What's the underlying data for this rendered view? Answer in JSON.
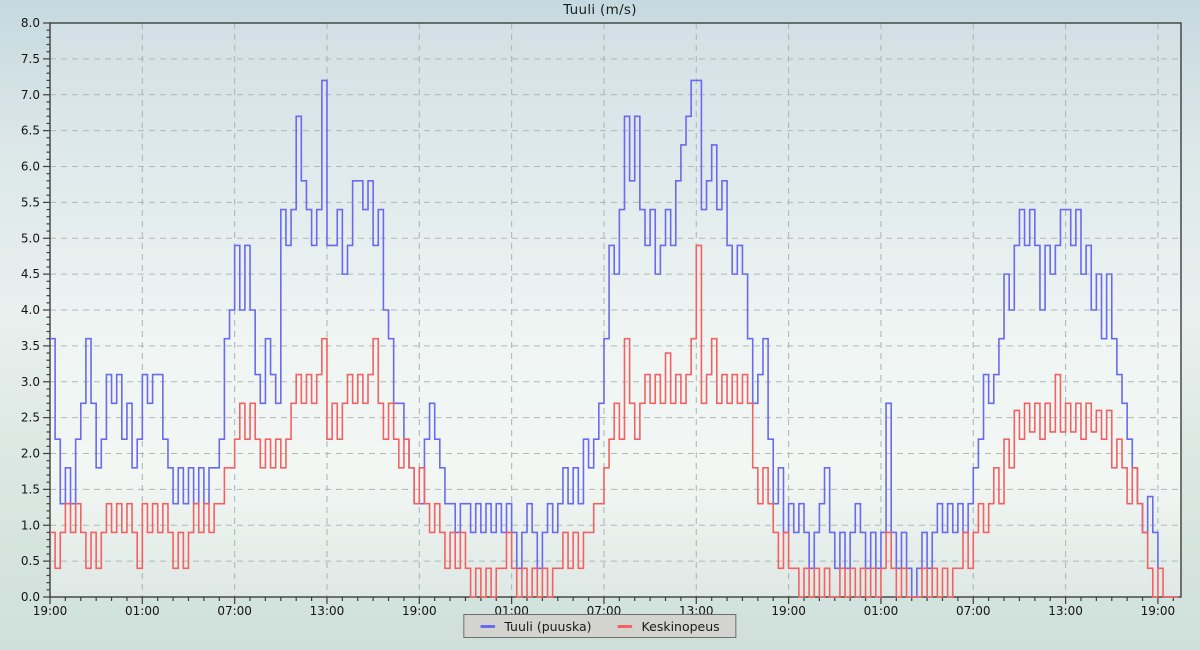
{
  "page": {
    "title": "Tuuli (m/s)"
  },
  "legend": {
    "items": [
      {
        "label": "Tuuli (puuska)",
        "color": "#6a6aec"
      },
      {
        "label": "Keskinopeus",
        "color": "#f36262"
      }
    ]
  },
  "chart_data": {
    "type": "line",
    "step": "after",
    "title": "Tuuli (m/s)",
    "xlabel": "",
    "ylabel": "",
    "ylim": [
      0,
      8
    ],
    "y_major": 0.5,
    "y_minor": 0.1,
    "y_tick_labels": [
      "8.0",
      "7.5",
      "7.0",
      "6.5",
      "6.0",
      "5.5",
      "5.0",
      "4.5",
      "4.0",
      "3.5",
      "3.0",
      "2.5",
      "2.0",
      "1.5",
      "1.0",
      "0.5",
      "0.0"
    ],
    "x_start_label": "19:00",
    "x_step_hours": 0.3333333,
    "x_total_hours": 73.5,
    "x_major_every_hours": 6,
    "x_minor_every_hours": 1,
    "x_tick_labels": [
      "19:00",
      "01:00",
      "07:00",
      "13:00",
      "19:00",
      "01:00",
      "07:00",
      "13:00",
      "19:00",
      "01:00",
      "07:00",
      "13:00",
      "19:00"
    ],
    "grid": true,
    "legend_position": "bottom",
    "colors": {
      "grid": "#b0b8b8",
      "axis": "#3d3d3d",
      "tick_text": "#141414",
      "plot_bg_top": "#d2e0e5",
      "plot_bg_mid": "#eff5f3",
      "plot_bg_low": "#f2f7f4",
      "plot_bg_bottom": "#dee8e4"
    },
    "series": [
      {
        "name": "Tuuli (puuska)",
        "color": "#6a6aec",
        "values": [
          3.6,
          2.2,
          1.3,
          1.8,
          1.3,
          2.2,
          2.7,
          3.6,
          2.7,
          1.8,
          2.2,
          3.1,
          2.7,
          3.1,
          2.2,
          2.7,
          1.8,
          2.2,
          3.1,
          2.7,
          3.1,
          3.1,
          2.2,
          1.8,
          1.3,
          1.8,
          1.3,
          1.8,
          1.3,
          1.8,
          1.3,
          1.8,
          1.8,
          2.2,
          3.6,
          4.0,
          4.9,
          4.0,
          4.9,
          4.0,
          3.1,
          2.7,
          3.6,
          3.1,
          2.7,
          5.4,
          4.9,
          5.4,
          6.7,
          5.8,
          5.4,
          4.9,
          5.4,
          7.2,
          4.9,
          4.9,
          5.4,
          4.5,
          4.9,
          5.8,
          5.8,
          5.4,
          5.8,
          4.9,
          5.4,
          4.0,
          3.6,
          2.7,
          2.7,
          2.2,
          1.8,
          1.3,
          1.3,
          2.2,
          2.7,
          2.2,
          1.8,
          1.3,
          1.3,
          0.9,
          1.3,
          1.3,
          0.9,
          1.3,
          0.9,
          1.3,
          0.9,
          1.3,
          0.9,
          1.3,
          0.9,
          0.4,
          0.9,
          1.3,
          0.9,
          0.4,
          0.9,
          1.3,
          0.9,
          1.3,
          1.8,
          1.3,
          1.8,
          1.3,
          2.2,
          1.8,
          2.2,
          2.7,
          3.6,
          4.9,
          4.5,
          5.4,
          6.7,
          5.8,
          6.7,
          5.4,
          4.9,
          5.4,
          4.5,
          4.9,
          5.4,
          4.9,
          5.8,
          6.3,
          6.7,
          7.2,
          7.2,
          5.4,
          5.8,
          6.3,
          5.4,
          5.8,
          4.9,
          4.5,
          4.9,
          4.5,
          3.6,
          2.7,
          3.1,
          3.6,
          2.2,
          1.3,
          1.8,
          0.9,
          1.3,
          0.9,
          1.3,
          0.9,
          0.4,
          0.9,
          1.3,
          1.8,
          0.9,
          0.4,
          0.9,
          0.4,
          0.9,
          1.3,
          0.9,
          0.4,
          0.9,
          0.4,
          0.9,
          2.7,
          0.9,
          0.4,
          0.9,
          0.4,
          0.0,
          0.4,
          0.9,
          0.4,
          0.9,
          1.3,
          0.9,
          1.3,
          0.9,
          1.3,
          0.9,
          1.3,
          1.8,
          2.2,
          3.1,
          2.7,
          3.1,
          3.6,
          4.5,
          4.0,
          4.9,
          5.4,
          4.9,
          5.4,
          4.9,
          4.0,
          4.9,
          4.5,
          4.9,
          5.4,
          5.4,
          4.9,
          5.4,
          4.5,
          4.9,
          4.0,
          4.5,
          3.6,
          4.5,
          3.6,
          3.1,
          2.7,
          2.2,
          1.8,
          1.3,
          0.9,
          1.4,
          0.9,
          0.4
        ]
      },
      {
        "name": "Keskinopeus",
        "color": "#f36262",
        "values": [
          0.9,
          0.4,
          0.9,
          1.3,
          0.9,
          1.3,
          0.9,
          0.4,
          0.9,
          0.4,
          0.9,
          1.3,
          0.9,
          1.3,
          0.9,
          1.3,
          0.9,
          0.4,
          1.3,
          0.9,
          1.3,
          0.9,
          1.3,
          0.9,
          0.4,
          0.9,
          0.4,
          0.9,
          1.3,
          0.9,
          1.3,
          0.9,
          1.3,
          1.3,
          1.8,
          1.8,
          2.2,
          2.7,
          2.2,
          2.7,
          2.2,
          1.8,
          2.2,
          1.8,
          2.2,
          1.8,
          2.2,
          2.7,
          3.1,
          2.7,
          3.1,
          2.7,
          3.1,
          3.6,
          2.2,
          2.7,
          2.2,
          2.7,
          3.1,
          2.7,
          3.1,
          2.7,
          3.1,
          3.6,
          2.7,
          2.2,
          2.7,
          2.2,
          1.8,
          2.2,
          1.8,
          1.3,
          1.8,
          1.3,
          0.9,
          1.3,
          0.9,
          0.4,
          0.9,
          0.4,
          0.9,
          0.4,
          0.0,
          0.4,
          0.0,
          0.4,
          0.0,
          0.4,
          0.4,
          0.9,
          0.4,
          0.0,
          0.4,
          0.0,
          0.4,
          0.0,
          0.4,
          0.0,
          0.4,
          0.4,
          0.9,
          0.4,
          0.9,
          0.4,
          0.9,
          0.9,
          1.3,
          1.3,
          1.8,
          2.2,
          2.7,
          2.2,
          3.6,
          2.7,
          2.2,
          2.7,
          3.1,
          2.7,
          3.1,
          2.7,
          3.4,
          2.7,
          3.1,
          2.7,
          3.1,
          3.6,
          4.9,
          2.7,
          3.1,
          3.6,
          2.7,
          3.1,
          2.7,
          3.1,
          2.7,
          3.1,
          2.7,
          1.8,
          1.3,
          1.8,
          1.3,
          0.9,
          0.4,
          0.9,
          0.4,
          0.4,
          0.0,
          0.4,
          0.0,
          0.4,
          0.0,
          0.4,
          0.0,
          0.0,
          0.4,
          0.0,
          0.4,
          0.0,
          0.4,
          0.0,
          0.4,
          0.0,
          0.4,
          0.9,
          0.4,
          0.0,
          0.4,
          0.0,
          0.0,
          0.0,
          0.4,
          0.0,
          0.4,
          0.0,
          0.4,
          0.0,
          0.4,
          0.4,
          0.9,
          0.4,
          0.9,
          1.3,
          0.9,
          1.3,
          1.8,
          1.3,
          2.2,
          1.8,
          2.6,
          2.2,
          2.7,
          2.3,
          2.7,
          2.2,
          2.7,
          2.3,
          3.1,
          2.3,
          2.7,
          2.3,
          2.7,
          2.2,
          2.7,
          2.3,
          2.6,
          2.2,
          2.6,
          1.8,
          2.2,
          1.8,
          1.3,
          1.8,
          1.3,
          0.9,
          0.4,
          0.0,
          0.4,
          0.0,
          0.0,
          0.0,
          0.0
        ]
      }
    ]
  }
}
